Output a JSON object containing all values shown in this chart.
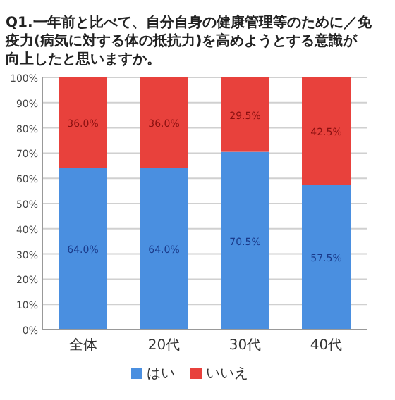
{
  "chart_data": {
    "type": "bar",
    "stacked": true,
    "title": "Q1.一年前と比べて、自分自身の健康管理等のために／免疫力(病気に対する体の抵抗力)を高めようとする意識が向上したと思いますか。",
    "categories": [
      "全体",
      "20代",
      "30代",
      "40代"
    ],
    "series": [
      {
        "name": "はい",
        "color": "#4a8fe0",
        "values": [
          64.0,
          64.0,
          70.5,
          57.5
        ],
        "value_labels": [
          "64.0%",
          "64.0%",
          "70.5%",
          "57.5%"
        ]
      },
      {
        "name": "いいえ",
        "color": "#e8413c",
        "values": [
          36.0,
          36.0,
          29.5,
          42.5
        ],
        "value_labels": [
          "36.0%",
          "36.0%",
          "29.5%",
          "42.5%"
        ]
      }
    ],
    "ylim": [
      0,
      100
    ],
    "yticks": [
      {
        "value": 0,
        "label": "0%"
      },
      {
        "value": 10,
        "label": "10%"
      },
      {
        "value": 20,
        "label": "20%"
      },
      {
        "value": 30,
        "label": "30%"
      },
      {
        "value": 40,
        "label": "40%"
      },
      {
        "value": 50,
        "label": "50%"
      },
      {
        "value": 60,
        "label": "60%"
      },
      {
        "value": 70,
        "label": "70%"
      },
      {
        "value": 80,
        "label": "80%"
      },
      {
        "value": 90,
        "label": "90%"
      },
      {
        "value": 100,
        "label": "100%"
      }
    ],
    "grid": "y",
    "legend": "bottom"
  }
}
